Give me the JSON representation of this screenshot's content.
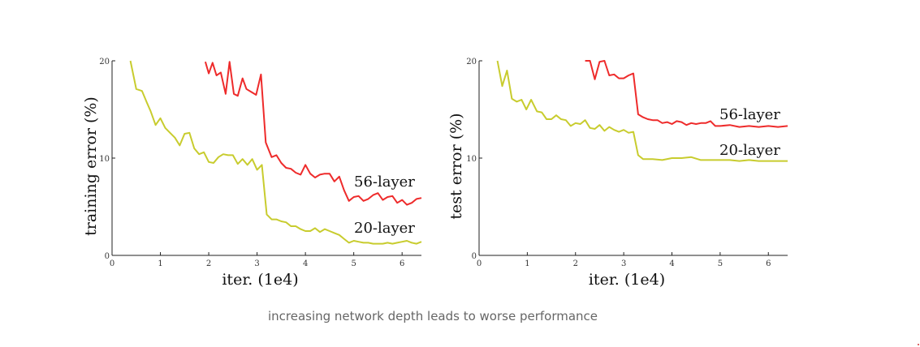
{
  "caption": "increasing network depth leads to worse performance",
  "colors": {
    "56-layer": "#ee2b2b",
    "20-layer": "#c8cc2e",
    "axis": "#222222"
  },
  "chart_data": [
    {
      "type": "line",
      "xlabel": "iter. (1e4)",
      "ylabel": "training error (%)",
      "xlim": [
        0,
        6.4
      ],
      "ylim": [
        0,
        20
      ],
      "xticks": [
        0,
        1,
        2,
        3,
        4,
        5,
        6
      ],
      "yticks": [
        0,
        10,
        20
      ],
      "series": [
        {
          "name": "56-layer",
          "color": "#ee2b2b",
          "x": [
            1.93,
            2.0,
            2.08,
            2.16,
            2.25,
            2.35,
            2.43,
            2.52,
            2.6,
            2.7,
            2.78,
            2.88,
            2.98,
            3.08,
            3.18,
            3.3,
            3.4,
            3.5,
            3.6,
            3.7,
            3.8,
            3.9,
            4.0,
            4.1,
            4.2,
            4.3,
            4.4,
            4.5,
            4.6,
            4.7,
            4.8,
            4.9,
            5.0,
            5.1,
            5.2,
            5.3,
            5.4,
            5.5,
            5.6,
            5.7,
            5.8,
            5.9,
            6.0,
            6.1,
            6.2,
            6.3,
            6.4
          ],
          "y": [
            19.9,
            18.7,
            19.8,
            18.5,
            18.8,
            16.6,
            19.9,
            16.6,
            16.4,
            18.2,
            17.1,
            16.8,
            16.5,
            18.6,
            11.6,
            10.1,
            10.3,
            9.5,
            9.0,
            8.9,
            8.5,
            8.3,
            9.3,
            8.4,
            8.0,
            8.3,
            8.4,
            8.4,
            7.6,
            8.1,
            6.7,
            5.6,
            6.0,
            6.1,
            5.6,
            5.8,
            6.2,
            6.4,
            5.7,
            6.0,
            6.1,
            5.4,
            5.7,
            5.2,
            5.4,
            5.8,
            5.9
          ]
        },
        {
          "name": "20-layer",
          "color": "#c8cc2e",
          "x": [
            0.38,
            0.5,
            0.62,
            0.72,
            0.8,
            0.9,
            1.0,
            1.1,
            1.2,
            1.3,
            1.4,
            1.5,
            1.6,
            1.7,
            1.8,
            1.9,
            2.0,
            2.1,
            2.2,
            2.3,
            2.4,
            2.5,
            2.6,
            2.7,
            2.8,
            2.9,
            3.0,
            3.1,
            3.2,
            3.3,
            3.4,
            3.5,
            3.6,
            3.7,
            3.8,
            3.9,
            4.0,
            4.1,
            4.2,
            4.3,
            4.4,
            4.5,
            4.6,
            4.7,
            4.8,
            4.9,
            5.0,
            5.1,
            5.2,
            5.3,
            5.4,
            5.5,
            5.6,
            5.7,
            5.8,
            5.9,
            6.0,
            6.1,
            6.2,
            6.3,
            6.4
          ],
          "y": [
            20.0,
            17.1,
            16.9,
            15.7,
            14.8,
            13.4,
            14.1,
            13.1,
            12.6,
            12.1,
            11.3,
            12.5,
            12.6,
            11.0,
            10.4,
            10.6,
            9.6,
            9.5,
            10.1,
            10.4,
            10.3,
            10.3,
            9.4,
            9.9,
            9.3,
            9.9,
            8.8,
            9.3,
            4.2,
            3.7,
            3.7,
            3.5,
            3.4,
            3.0,
            3.0,
            2.7,
            2.5,
            2.5,
            2.8,
            2.4,
            2.7,
            2.5,
            2.3,
            2.1,
            1.7,
            1.3,
            1.5,
            1.4,
            1.3,
            1.3,
            1.2,
            1.2,
            1.2,
            1.3,
            1.2,
            1.3,
            1.4,
            1.5,
            1.3,
            1.2,
            1.4
          ]
        }
      ]
    },
    {
      "type": "line",
      "xlabel": "iter. (1e4)",
      "ylabel": "test error (%)",
      "xlim": [
        0,
        6.4
      ],
      "ylim": [
        0,
        20
      ],
      "xticks": [
        0,
        1,
        2,
        3,
        4,
        5,
        6
      ],
      "yticks": [
        0,
        10,
        20
      ],
      "series": [
        {
          "name": "56-layer",
          "color": "#ee2b2b",
          "x": [
            2.2,
            2.3,
            2.4,
            2.5,
            2.6,
            2.7,
            2.8,
            2.9,
            3.0,
            3.1,
            3.2,
            3.3,
            3.4,
            3.5,
            3.6,
            3.7,
            3.8,
            3.9,
            4.0,
            4.1,
            4.2,
            4.3,
            4.4,
            4.5,
            4.6,
            4.7,
            4.8,
            4.9,
            5.0,
            5.2,
            5.4,
            5.6,
            5.8,
            6.0,
            6.2,
            6.4
          ],
          "y": [
            20.0,
            20.0,
            18.1,
            19.9,
            20.0,
            18.5,
            18.6,
            18.2,
            18.2,
            18.5,
            18.7,
            14.5,
            14.2,
            14.0,
            13.9,
            13.9,
            13.6,
            13.7,
            13.5,
            13.8,
            13.7,
            13.4,
            13.6,
            13.5,
            13.6,
            13.6,
            13.8,
            13.3,
            13.3,
            13.4,
            13.2,
            13.3,
            13.2,
            13.3,
            13.2,
            13.3
          ]
        },
        {
          "name": "20-layer",
          "color": "#c8cc2e",
          "x": [
            0.38,
            0.48,
            0.58,
            0.68,
            0.78,
            0.88,
            0.98,
            1.08,
            1.2,
            1.3,
            1.4,
            1.5,
            1.6,
            1.7,
            1.8,
            1.9,
            2.0,
            2.1,
            2.2,
            2.3,
            2.4,
            2.5,
            2.6,
            2.7,
            2.8,
            2.9,
            3.0,
            3.1,
            3.2,
            3.3,
            3.4,
            3.6,
            3.8,
            4.0,
            4.2,
            4.4,
            4.6,
            4.8,
            5.0,
            5.2,
            5.4,
            5.6,
            5.8,
            6.0,
            6.2,
            6.4
          ],
          "y": [
            20.0,
            17.4,
            19.0,
            16.1,
            15.8,
            16.0,
            15.0,
            16.0,
            14.8,
            14.7,
            14.0,
            14.0,
            14.4,
            14.0,
            13.9,
            13.3,
            13.6,
            13.5,
            13.9,
            13.1,
            13.0,
            13.4,
            12.8,
            13.2,
            12.9,
            12.7,
            12.9,
            12.6,
            12.7,
            10.3,
            9.9,
            9.9,
            9.8,
            10.0,
            10.0,
            10.1,
            9.8,
            9.8,
            9.8,
            9.8,
            9.7,
            9.8,
            9.7,
            9.7,
            9.7,
            9.7
          ]
        }
      ]
    }
  ]
}
